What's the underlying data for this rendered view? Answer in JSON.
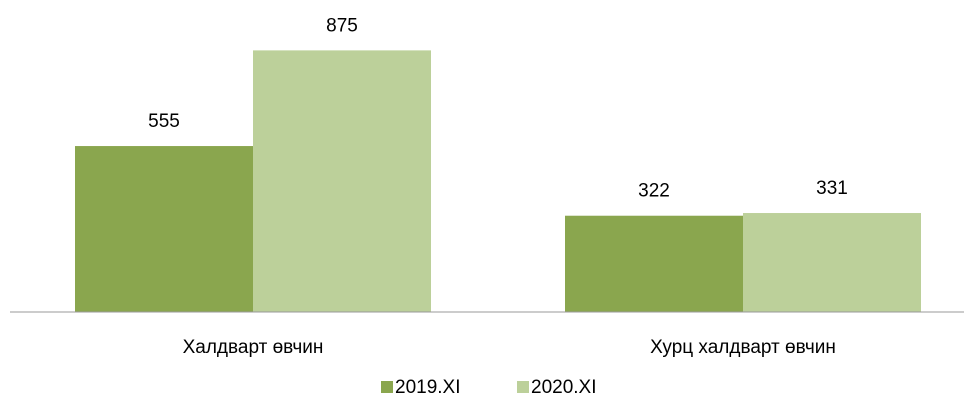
{
  "chart_data": {
    "type": "bar",
    "categories": [
      "Халдварт өвчин",
      "Хурц халдварт өвчин"
    ],
    "series": [
      {
        "name": "2019.XI",
        "color": "#8aa64e",
        "values": [
          555,
          322
        ]
      },
      {
        "name": "2020.XI",
        "color": "#bcd09a",
        "values": [
          875,
          331
        ]
      }
    ],
    "ylim": [
      0,
      1000
    ]
  }
}
